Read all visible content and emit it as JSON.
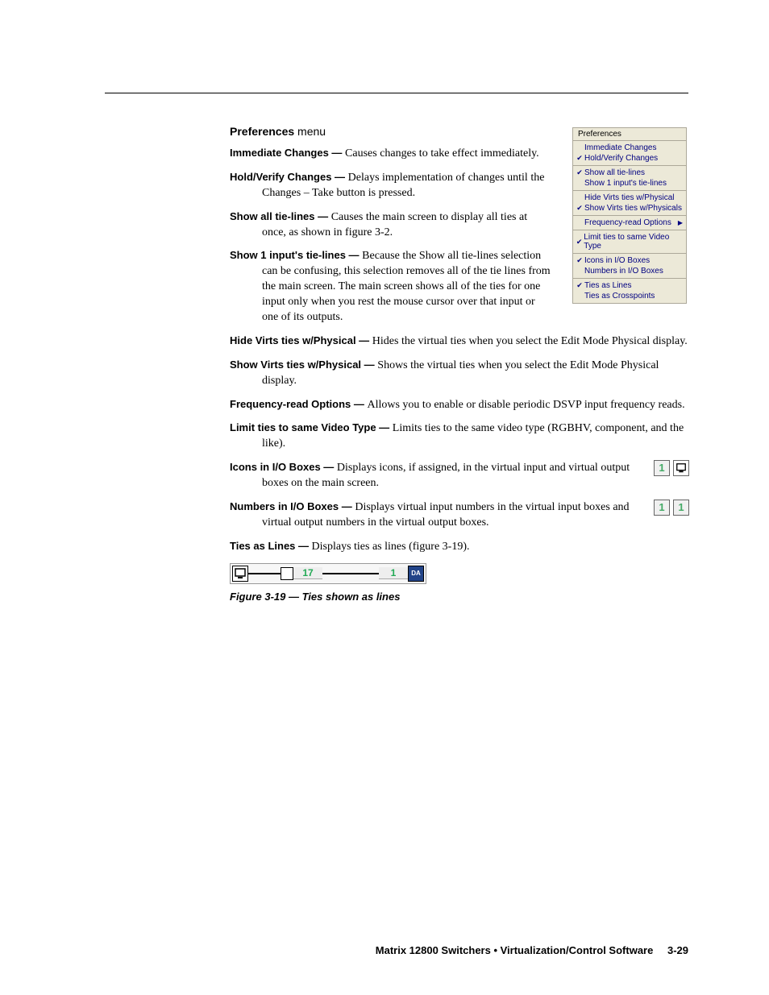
{
  "section": {
    "title_bold": "Preferences",
    "title_rest": " menu"
  },
  "menu_screenshot": {
    "title": "Preferences",
    "groups": [
      [
        {
          "checked": false,
          "label": "Immediate Changes"
        },
        {
          "checked": true,
          "label": "Hold/Verify Changes"
        }
      ],
      [
        {
          "checked": true,
          "label": "Show all tie-lines"
        },
        {
          "checked": false,
          "label": "Show 1 input's tie-lines"
        }
      ],
      [
        {
          "checked": false,
          "label": "Hide Virts ties w/Physical"
        },
        {
          "checked": true,
          "label": "Show Virts ties w/Physicals"
        }
      ],
      [
        {
          "checked": false,
          "label": "Frequency-read Options",
          "submenu": true
        }
      ],
      [
        {
          "checked": true,
          "label": "Limit ties to same Video Type"
        }
      ],
      [
        {
          "checked": true,
          "label": "Icons in I/O Boxes"
        },
        {
          "checked": false,
          "label": "Numbers in I/O Boxes"
        }
      ],
      [
        {
          "checked": true,
          "label": "Ties as Lines"
        },
        {
          "checked": false,
          "label": "Ties as Crosspoints"
        }
      ]
    ]
  },
  "defs_narrow": [
    {
      "term": "Immediate Changes —",
      "body": "Causes changes to take effect immediately."
    },
    {
      "term": "Hold/Verify Changes —",
      "body": "Delays implementation of changes until the Changes – Take button is pressed."
    },
    {
      "term": "Show all tie-lines —",
      "body": "Causes the main screen to display all ties at once, as shown in figure 3-2."
    },
    {
      "term": "Show 1 input's tie-lines —",
      "body": "Because the Show all tie-lines selection can be confusing, this selection removes all of the tie lines from the main screen.  The main screen shows all of the ties for one input only when you rest the mouse cursor over that input or one of its outputs."
    }
  ],
  "defs_wide": [
    {
      "term": "Hide Virts ties w/Physical —",
      "body": "Hides the virtual ties when you select the Edit Mode Physical display."
    },
    {
      "term": "Show Virts ties w/Physical —",
      "body": "Shows the virtual ties when you select the Edit Mode Physical display."
    },
    {
      "term": "Frequency-read Options —",
      "body": "Allows you to enable or disable periodic DSVP input frequency reads."
    },
    {
      "term": "Limit ties to same Video Type —",
      "body": "Limits ties to the same video type (RGBHV, component, and the like)."
    }
  ],
  "defs_icons": [
    {
      "term": "Icons in I/O Boxes —",
      "body": "Displays icons, if assigned, in the virtual input and virtual output boxes on the main screen.",
      "box_left_num": "1",
      "box_right_type": "pc"
    },
    {
      "term": "Numbers in I/O Boxes —",
      "body": "Displays virtual input numbers in the virtual input boxes and virtual output numbers in the virtual output boxes.",
      "box_left_num": "1",
      "box_right_num": "1"
    }
  ],
  "defs_ties": {
    "term": "Ties as Lines —",
    "body": "Displays ties as lines (figure 3-19)."
  },
  "figure": {
    "label_in": "17",
    "label_out": "1",
    "da_text": "DA",
    "caption": "Figure 3-19 — Ties shown as lines"
  },
  "footer": {
    "text": "Matrix 12800 Switchers • Virtualization/Control Software",
    "page": "3-29"
  },
  "colors": {
    "rule": "#000000",
    "menu_bg": "#ece9d8",
    "menu_border": "#aca899",
    "menu_text": "#000080",
    "num_color": "#44aa66"
  }
}
